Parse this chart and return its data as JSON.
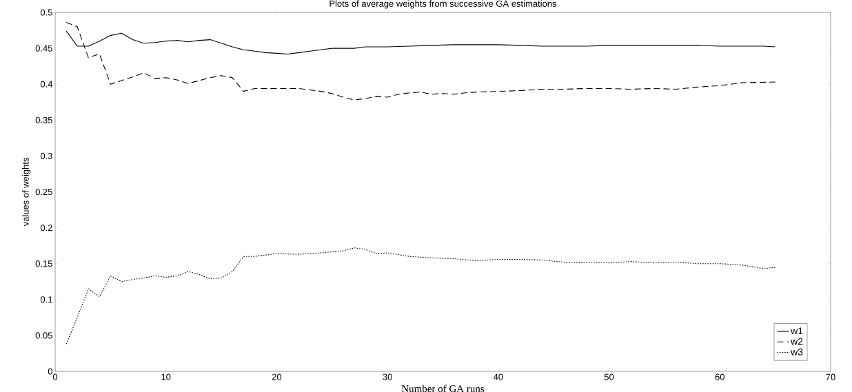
{
  "chart_data": {
    "type": "line",
    "title": "Plots of average weights from successive GA estimations",
    "xlabel": "Number of GA runs",
    "ylabel": "values of weights",
    "xlim": [
      0,
      70
    ],
    "ylim": [
      0,
      0.5
    ],
    "xticks": [
      0,
      10,
      20,
      30,
      40,
      50,
      60,
      70
    ],
    "yticks": [
      0,
      0.05,
      0.1,
      0.15,
      0.2,
      0.25,
      0.3,
      0.35,
      0.4,
      0.45,
      0.5
    ],
    "legend": "bottom right",
    "grid": false,
    "marker": "none",
    "series": [
      {
        "name": "w1",
        "color": "#000000",
        "line_style": "solid",
        "x": [
          1,
          2,
          3,
          4,
          5,
          6,
          7,
          8,
          9,
          10,
          11,
          12,
          13,
          14,
          15,
          16,
          17,
          18,
          19,
          20,
          21,
          22,
          23,
          24,
          25,
          27,
          28,
          30,
          32,
          34,
          36,
          38,
          40,
          42,
          44,
          46,
          48,
          50,
          52,
          54,
          56,
          58,
          60,
          62,
          64,
          65
        ],
        "values": [
          0.474,
          0.453,
          0.453,
          0.46,
          0.468,
          0.471,
          0.462,
          0.457,
          0.458,
          0.46,
          0.461,
          0.459,
          0.461,
          0.462,
          0.457,
          0.452,
          0.448,
          0.446,
          0.444,
          0.443,
          0.442,
          0.444,
          0.446,
          0.448,
          0.45,
          0.45,
          0.452,
          0.452,
          0.453,
          0.454,
          0.455,
          0.455,
          0.455,
          0.454,
          0.453,
          0.453,
          0.453,
          0.454,
          0.454,
          0.454,
          0.454,
          0.454,
          0.453,
          0.453,
          0.453,
          0.452
        ]
      },
      {
        "name": "w2",
        "color": "#000000",
        "line_style": "dashed",
        "x": [
          1,
          2,
          3,
          4,
          5,
          6,
          7,
          8,
          9,
          10,
          11,
          12,
          13,
          14,
          15,
          16,
          17,
          18,
          20,
          22,
          24,
          25,
          26,
          27,
          28,
          29,
          30,
          31,
          32,
          33,
          34,
          35,
          36,
          37,
          38,
          40,
          42,
          44,
          46,
          48,
          50,
          52,
          54,
          56,
          58,
          60,
          62,
          65
        ],
        "values": [
          0.486,
          0.48,
          0.437,
          0.442,
          0.4,
          0.405,
          0.41,
          0.416,
          0.408,
          0.409,
          0.406,
          0.401,
          0.405,
          0.409,
          0.412,
          0.409,
          0.39,
          0.394,
          0.394,
          0.394,
          0.39,
          0.387,
          0.382,
          0.378,
          0.38,
          0.383,
          0.382,
          0.386,
          0.388,
          0.389,
          0.386,
          0.387,
          0.386,
          0.388,
          0.389,
          0.39,
          0.391,
          0.393,
          0.393,
          0.394,
          0.394,
          0.393,
          0.394,
          0.393,
          0.396,
          0.398,
          0.402,
          0.403
        ]
      },
      {
        "name": "w3",
        "color": "#000000",
        "line_style": "dotted",
        "x": [
          1,
          2,
          3,
          4,
          5,
          6,
          7,
          8,
          9,
          10,
          11,
          12,
          13,
          14,
          15,
          16,
          17,
          18,
          19,
          20,
          22,
          24,
          26,
          27,
          28,
          29,
          30,
          32,
          34,
          36,
          38,
          40,
          42,
          44,
          46,
          48,
          50,
          52,
          54,
          56,
          58,
          60,
          62,
          64,
          65
        ],
        "values": [
          0.038,
          0.075,
          0.115,
          0.104,
          0.133,
          0.125,
          0.128,
          0.13,
          0.133,
          0.131,
          0.133,
          0.139,
          0.135,
          0.129,
          0.13,
          0.139,
          0.16,
          0.16,
          0.162,
          0.164,
          0.163,
          0.165,
          0.168,
          0.172,
          0.17,
          0.164,
          0.165,
          0.16,
          0.158,
          0.157,
          0.154,
          0.156,
          0.156,
          0.155,
          0.152,
          0.152,
          0.151,
          0.153,
          0.151,
          0.152,
          0.15,
          0.15,
          0.148,
          0.143,
          0.145
        ]
      }
    ]
  }
}
